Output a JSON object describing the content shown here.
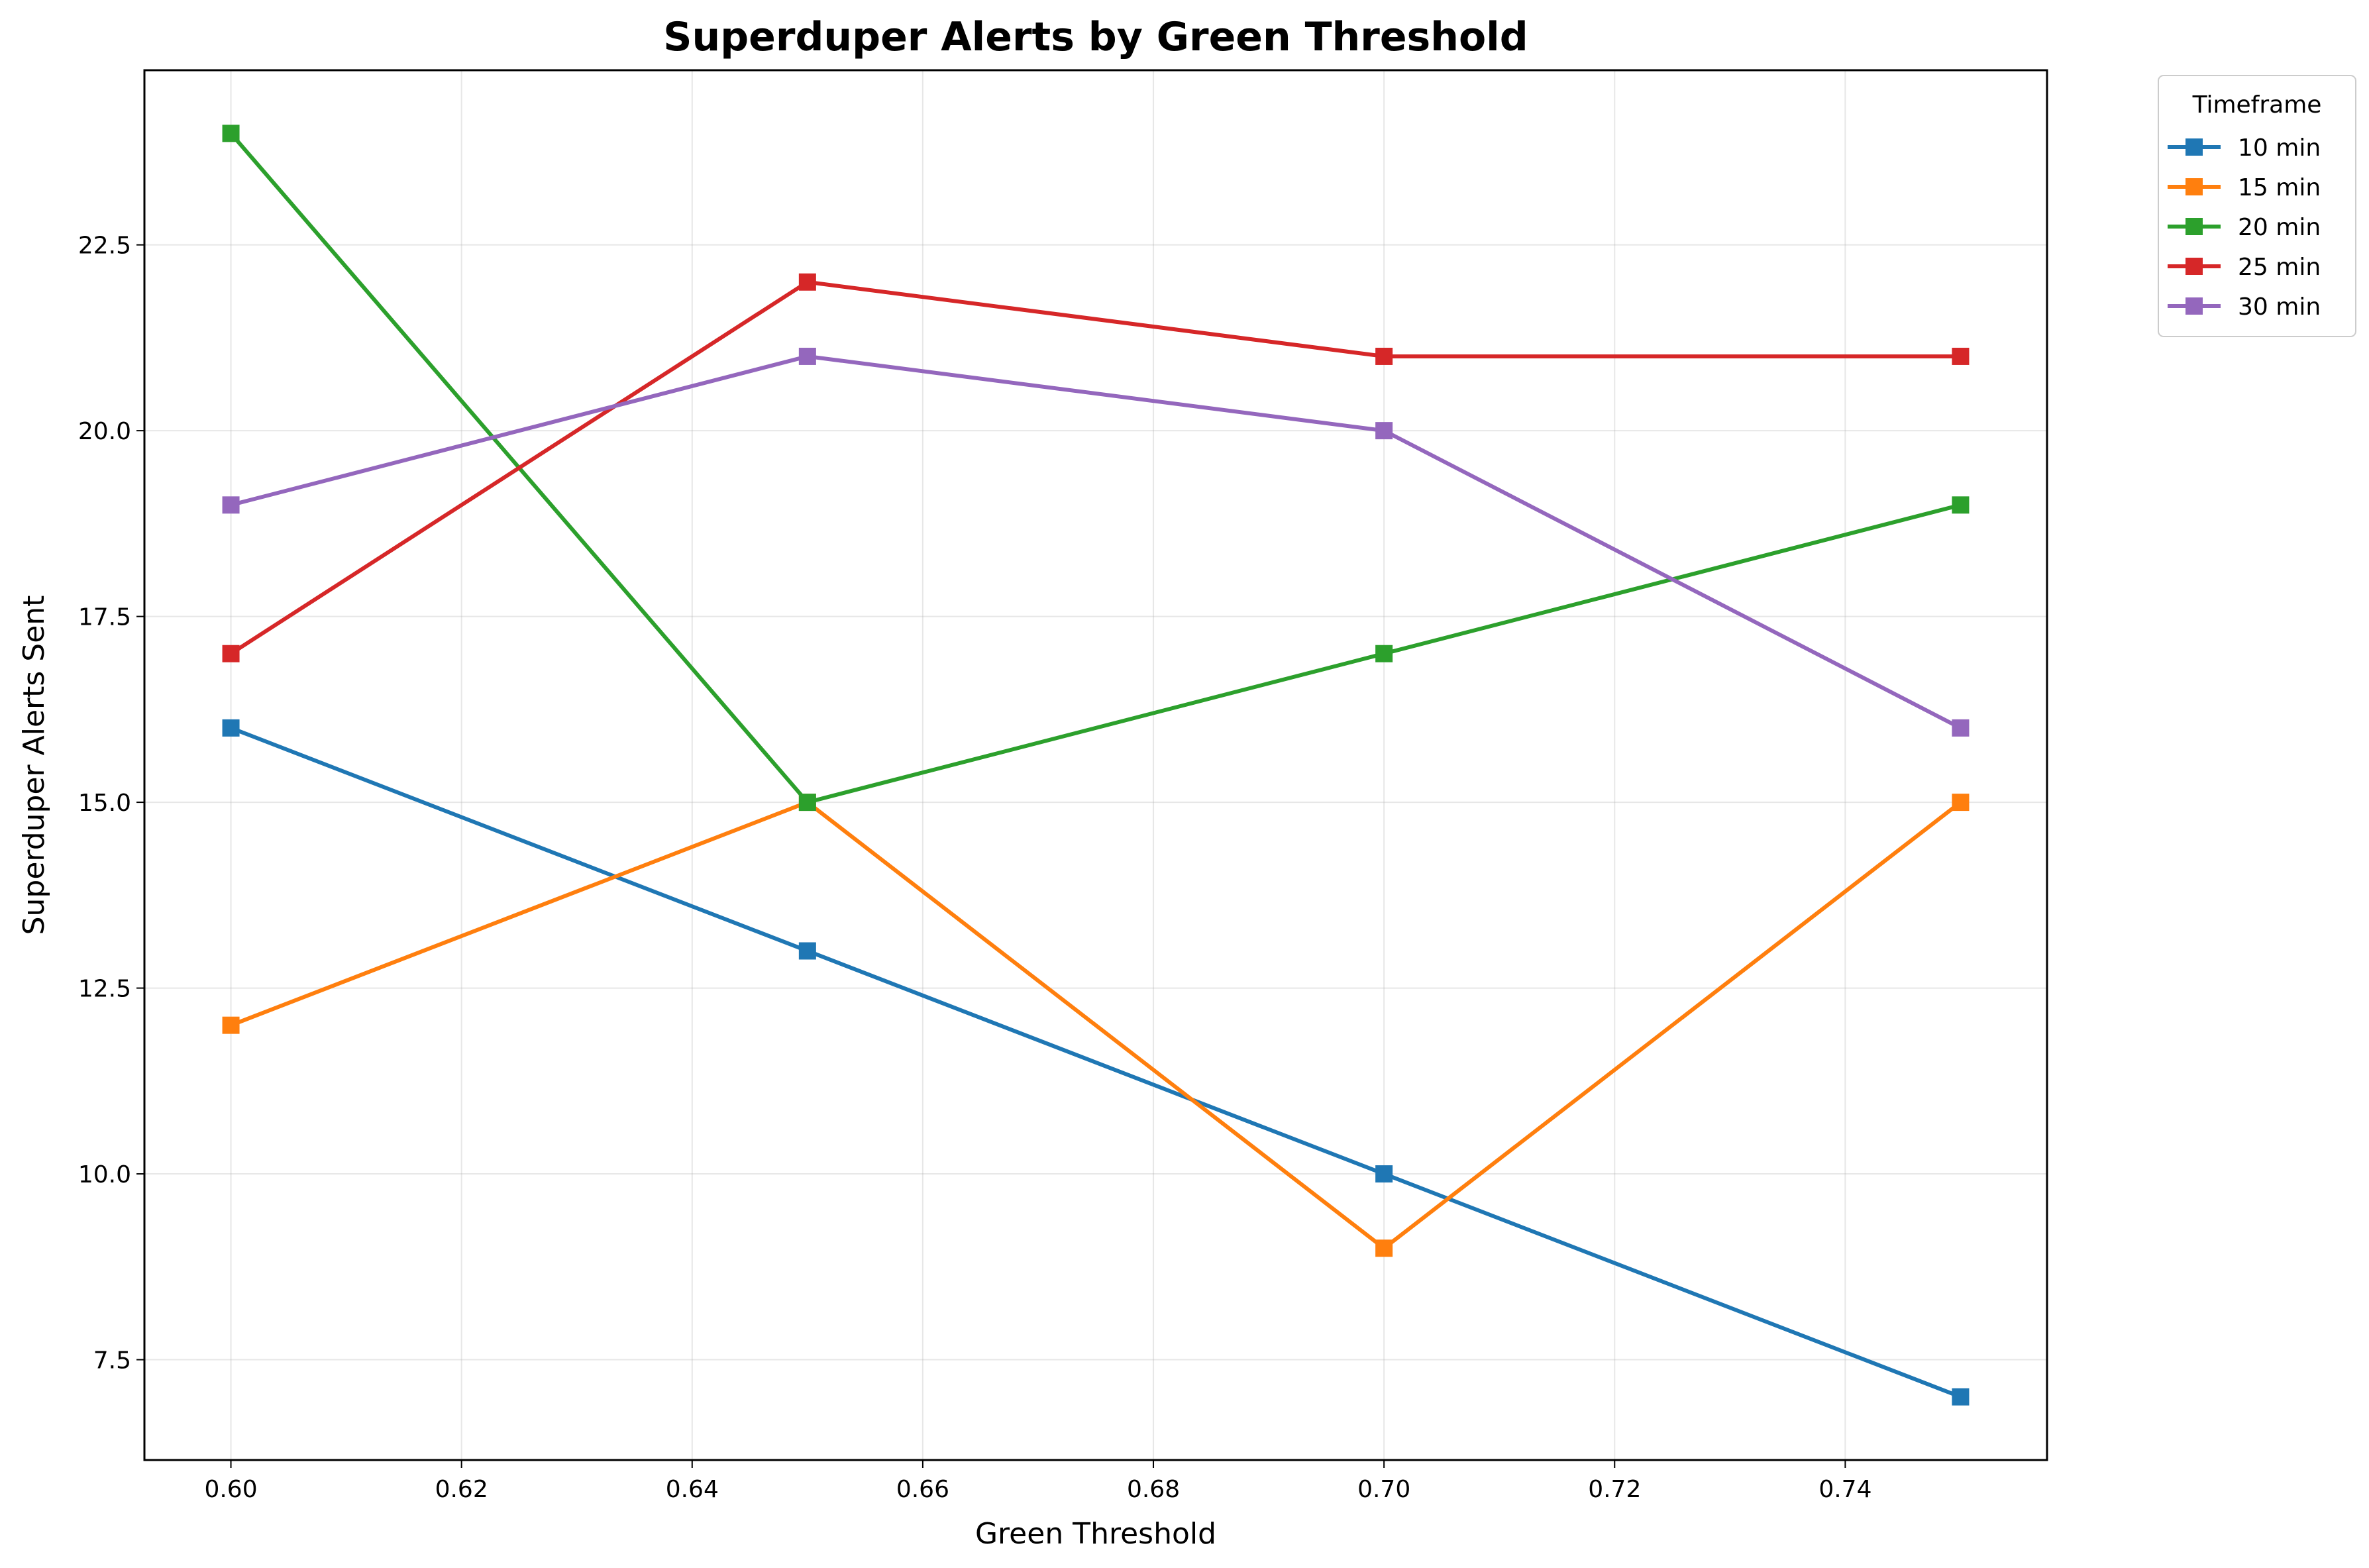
{
  "chart_data": {
    "type": "line",
    "title": "Superduper Alerts by Green Threshold",
    "xlabel": "Green Threshold",
    "ylabel": "Superduper Alerts Sent",
    "x": [
      0.6,
      0.65,
      0.7,
      0.75
    ],
    "xlim": [
      0.5925,
      0.7575
    ],
    "ylim": [
      6.15,
      24.85
    ],
    "xticks": [
      "0.60",
      "0.62",
      "0.64",
      "0.66",
      "0.68",
      "0.70",
      "0.72",
      "0.74"
    ],
    "yticks": [
      "7.5",
      "10.0",
      "12.5",
      "15.0",
      "17.5",
      "20.0",
      "22.5"
    ],
    "grid": true,
    "marker": "square",
    "legend": {
      "title": "Timeframe",
      "placement": "outside-top-right"
    },
    "series": [
      {
        "name": "10 min",
        "color": "#1f77b4",
        "values": [
          16,
          13,
          10,
          7
        ]
      },
      {
        "name": "15 min",
        "color": "#ff7f0e",
        "values": [
          12,
          15,
          9,
          15
        ]
      },
      {
        "name": "20 min",
        "color": "#2ca02c",
        "values": [
          24,
          15,
          17,
          19
        ]
      },
      {
        "name": "25 min",
        "color": "#d62728",
        "values": [
          17,
          22,
          21,
          21
        ]
      },
      {
        "name": "30 min",
        "color": "#9467bd",
        "values": [
          19,
          21,
          20,
          16
        ]
      }
    ]
  }
}
